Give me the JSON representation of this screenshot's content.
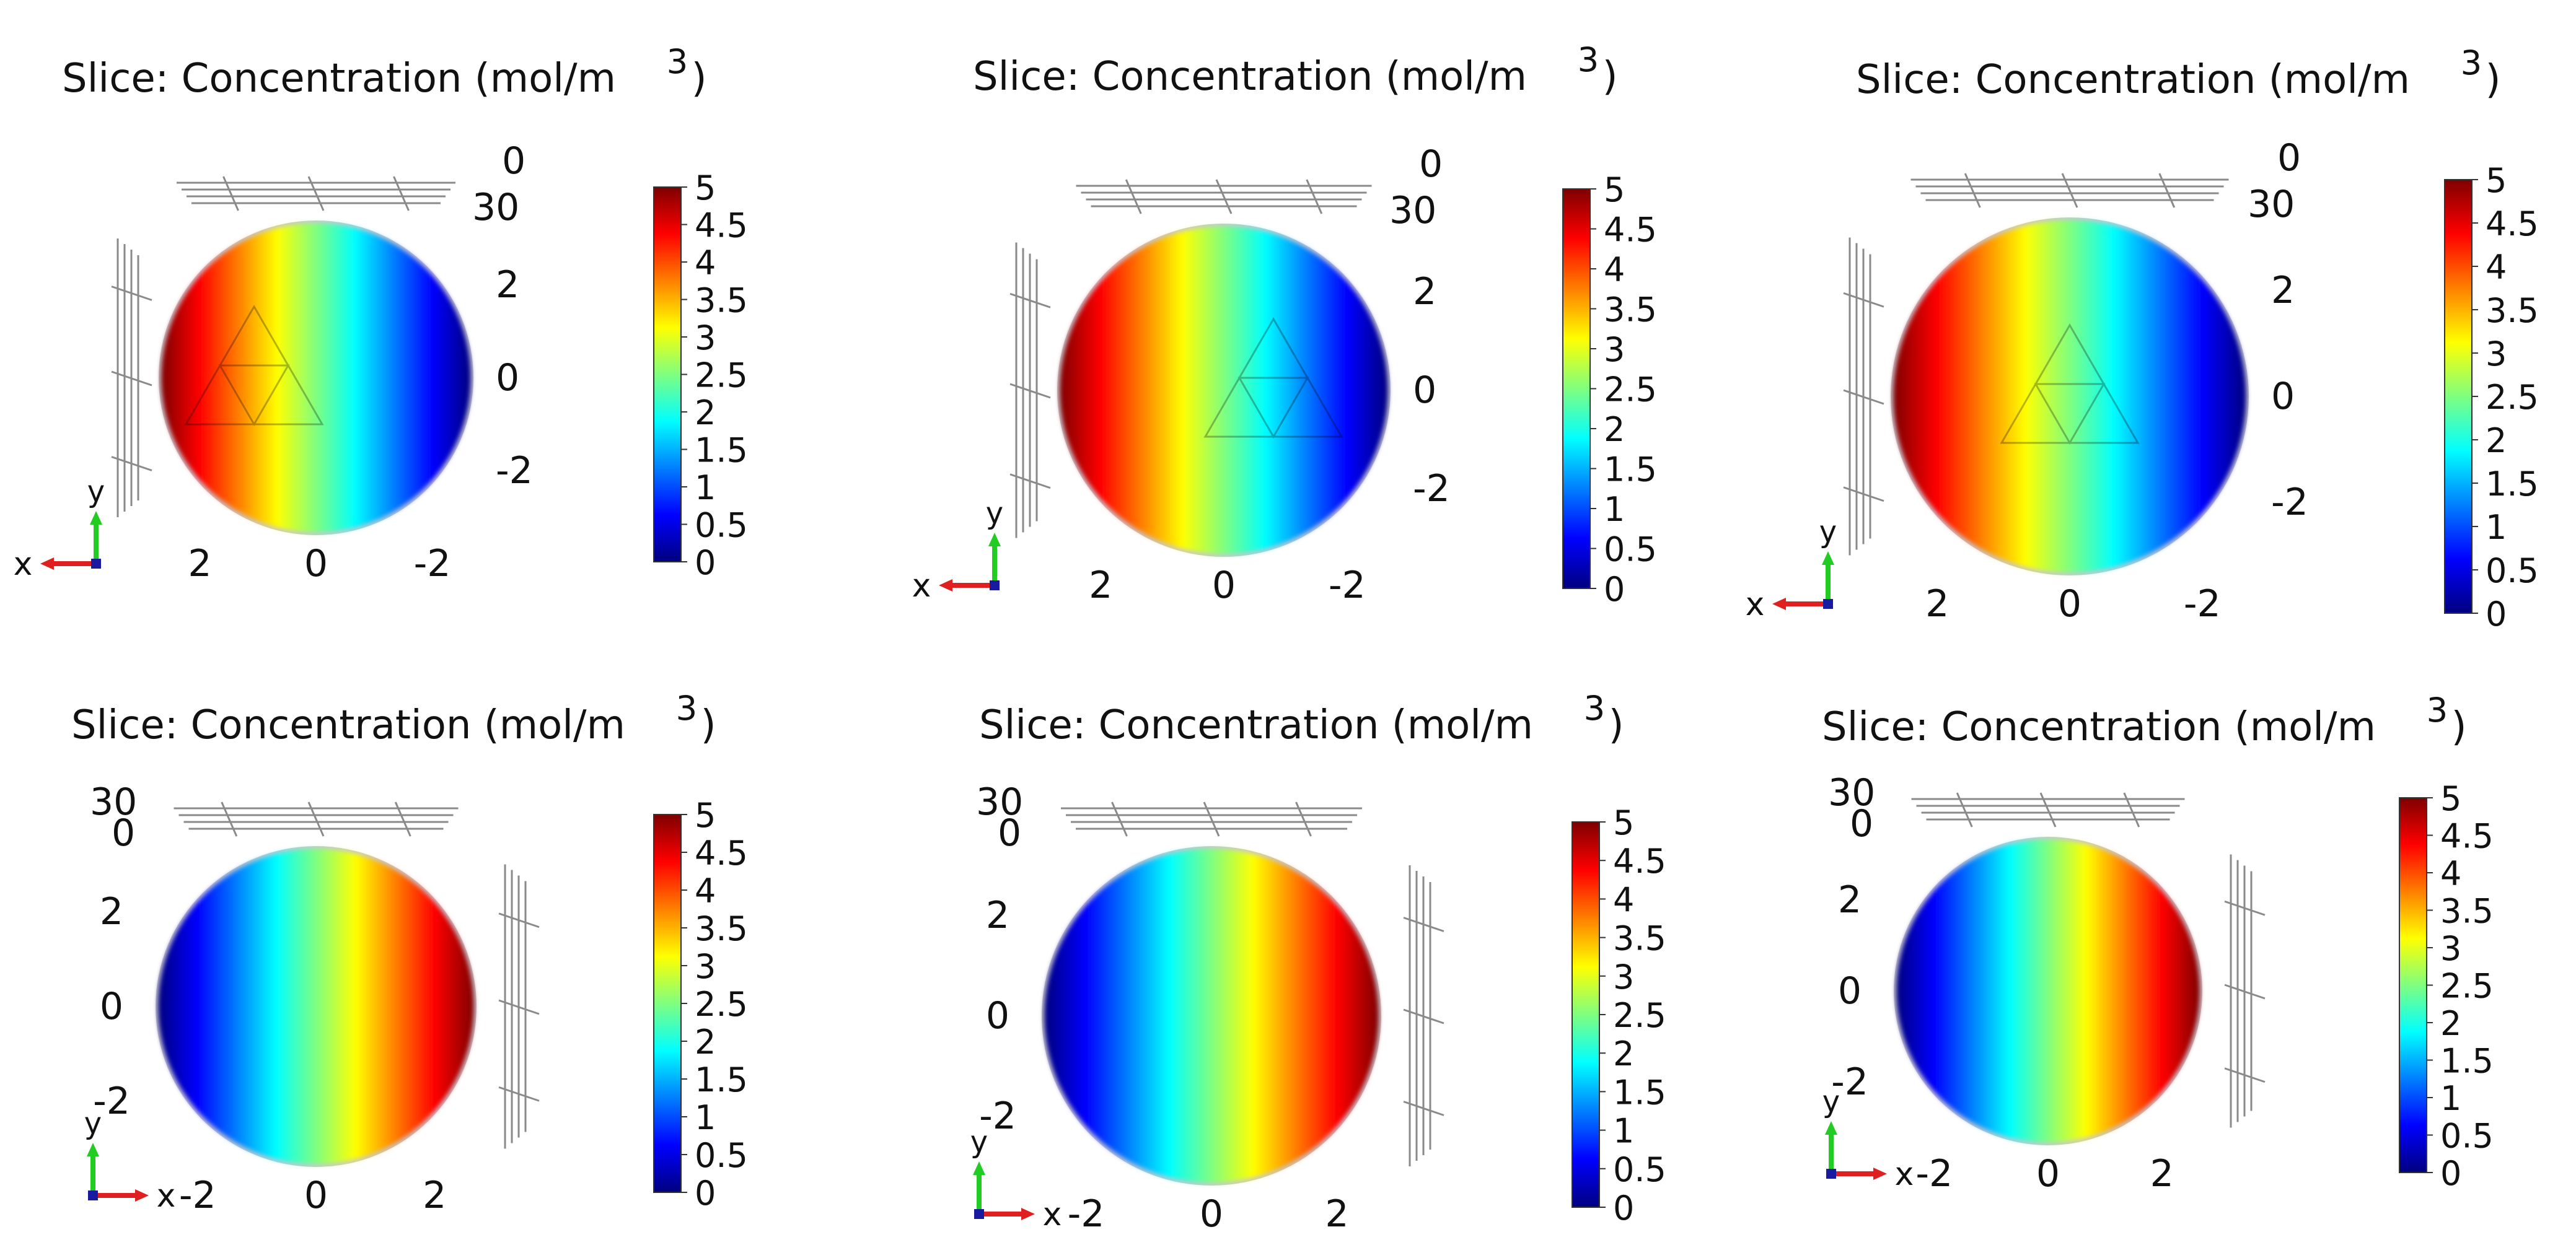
{
  "chart_data": [
    {
      "type": "heatmap",
      "title": "Slice: Concentration (mol/m",
      "title_superscript": "3",
      "x_ticks": [
        "2",
        "0",
        "-2"
      ],
      "y_ticks": [
        "2",
        "0",
        "-2"
      ],
      "z_ticks": [
        "0",
        "30"
      ],
      "axis_x": "x",
      "axis_y": "y",
      "colorbar_ticks": [
        "5",
        "4.5",
        "4",
        "3.5",
        "3",
        "2.5",
        "2",
        "1.5",
        "1",
        "0.5",
        "0"
      ],
      "colorbar_range": [
        0,
        5
      ],
      "gradient_direction": "high-left"
    },
    {
      "type": "heatmap",
      "title": "Slice: Concentration (mol/m",
      "title_superscript": "3",
      "x_ticks": [
        "2",
        "0",
        "-2"
      ],
      "y_ticks": [
        "2",
        "0",
        "-2"
      ],
      "z_ticks": [
        "0",
        "30"
      ],
      "axis_x": "x",
      "axis_y": "y",
      "colorbar_ticks": [
        "5",
        "4.5",
        "4",
        "3.5",
        "3",
        "2.5",
        "2",
        "1.5",
        "1",
        "0.5",
        "0"
      ],
      "colorbar_range": [
        0,
        5
      ],
      "gradient_direction": "high-left"
    },
    {
      "type": "heatmap",
      "title": "Slice: Concentration (mol/m",
      "title_superscript": "3",
      "x_ticks": [
        "2",
        "0",
        "-2"
      ],
      "y_ticks": [
        "2",
        "0",
        "-2"
      ],
      "z_ticks": [
        "0",
        "30"
      ],
      "axis_x": "x",
      "axis_y": "y",
      "colorbar_ticks": [
        "5",
        "4.5",
        "4",
        "3.5",
        "3",
        "2.5",
        "2",
        "1.5",
        "1",
        "0.5",
        "0"
      ],
      "colorbar_range": [
        0,
        5
      ],
      "gradient_direction": "high-left"
    },
    {
      "type": "heatmap",
      "title": "Slice: Concentration (mol/m",
      "title_superscript": "3",
      "x_ticks": [
        "-2",
        "0",
        "2"
      ],
      "y_ticks": [
        "2",
        "0",
        "-2"
      ],
      "z_ticks": [
        "30",
        "0"
      ],
      "axis_x": "x",
      "axis_y": "y",
      "colorbar_ticks": [
        "5",
        "4.5",
        "4",
        "3.5",
        "3",
        "2.5",
        "2",
        "1.5",
        "1",
        "0.5",
        "0"
      ],
      "colorbar_range": [
        0,
        5
      ],
      "gradient_direction": "high-right"
    },
    {
      "type": "heatmap",
      "title": "Slice: Concentration (mol/m",
      "title_superscript": "3",
      "x_ticks": [
        "-2",
        "0",
        "2"
      ],
      "y_ticks": [
        "2",
        "0",
        "-2"
      ],
      "z_ticks": [
        "30",
        "0"
      ],
      "axis_x": "x",
      "axis_y": "y",
      "colorbar_ticks": [
        "5",
        "4.5",
        "4",
        "3.5",
        "3",
        "2.5",
        "2",
        "1.5",
        "1",
        "0.5",
        "0"
      ],
      "colorbar_range": [
        0,
        5
      ],
      "gradient_direction": "high-right"
    },
    {
      "type": "heatmap",
      "title": "Slice: Concentration (mol/m",
      "title_superscript": "3",
      "x_ticks": [
        "-2",
        "0",
        "2"
      ],
      "y_ticks": [
        "2",
        "0",
        "-2"
      ],
      "z_ticks": [
        "30",
        "0"
      ],
      "axis_x": "x",
      "axis_y": "y",
      "colorbar_ticks": [
        "5",
        "4.5",
        "4",
        "3.5",
        "3",
        "2.5",
        "2",
        "1.5",
        "1",
        "0.5",
        "0"
      ],
      "colorbar_range": [
        0,
        5
      ],
      "gradient_direction": "high-right"
    }
  ],
  "colormap": [
    "#00007f",
    "#0000ff",
    "#007fff",
    "#00ffff",
    "#7fff7f",
    "#ffff00",
    "#ff7f00",
    "#ff0000",
    "#7f0000"
  ],
  "axis_colors": {
    "x": "#e02020",
    "y": "#22cc22",
    "z": "#1a1aa0"
  }
}
